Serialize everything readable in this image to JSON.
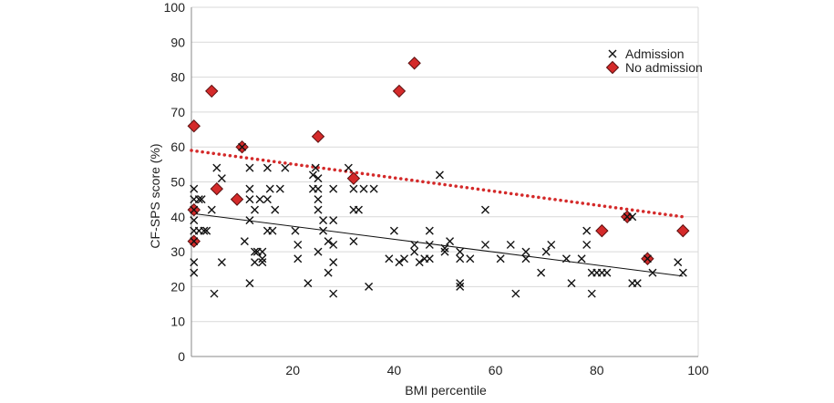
{
  "chart_data": {
    "type": "scatter",
    "xlabel": "BMI percentile",
    "ylabel": "CF-SPS score (%)",
    "xlim": [
      0,
      100
    ],
    "ylim": [
      0,
      100
    ],
    "x_ticks": [
      20,
      40,
      60,
      80,
      100
    ],
    "y_ticks": [
      0,
      10,
      20,
      30,
      40,
      50,
      60,
      70,
      80,
      90,
      100
    ],
    "grid": "horizontal",
    "legend_position": "top-right",
    "colors": {
      "admission": "#111111",
      "no_admission_fill": "#d42a2a",
      "no_admission_edge": "#5a1010",
      "trend_no_admission": "#d42a2a",
      "trend_admission": "#111111",
      "grid": "#d9d9d9"
    },
    "series": [
      {
        "name": "Admission",
        "marker": "x",
        "points": [
          [
            0.5,
            48
          ],
          [
            0.5,
            45
          ],
          [
            0.5,
            42
          ],
          [
            0.5,
            39
          ],
          [
            0.5,
            36
          ],
          [
            0.5,
            33
          ],
          [
            0.5,
            27
          ],
          [
            0.5,
            24
          ],
          [
            1.5,
            45
          ],
          [
            1.5,
            36
          ],
          [
            2,
            45
          ],
          [
            2.5,
            36
          ],
          [
            3,
            36
          ],
          [
            4,
            42
          ],
          [
            4.5,
            18
          ],
          [
            5,
            54
          ],
          [
            6,
            51
          ],
          [
            6,
            27
          ],
          [
            10,
            60
          ],
          [
            10.5,
            33
          ],
          [
            11.5,
            54
          ],
          [
            11.5,
            48
          ],
          [
            11.5,
            45
          ],
          [
            11.5,
            39
          ],
          [
            11.5,
            21
          ],
          [
            12.5,
            42
          ],
          [
            12.5,
            30
          ],
          [
            12.5,
            27
          ],
          [
            13,
            30
          ],
          [
            13.5,
            45
          ],
          [
            14,
            30
          ],
          [
            14,
            28
          ],
          [
            14,
            27
          ],
          [
            15,
            45
          ],
          [
            15,
            36
          ],
          [
            15,
            54
          ],
          [
            15.5,
            48
          ],
          [
            16,
            36
          ],
          [
            16.5,
            42
          ],
          [
            17.5,
            48
          ],
          [
            18.5,
            54
          ],
          [
            20.5,
            36
          ],
          [
            21,
            32
          ],
          [
            21,
            28
          ],
          [
            23,
            21
          ],
          [
            24,
            52
          ],
          [
            24,
            48
          ],
          [
            24.5,
            54
          ],
          [
            25,
            51
          ],
          [
            25,
            48
          ],
          [
            25,
            45
          ],
          [
            25,
            42
          ],
          [
            25,
            30
          ],
          [
            26,
            39
          ],
          [
            26,
            36
          ],
          [
            27,
            24
          ],
          [
            27,
            33
          ],
          [
            28,
            48
          ],
          [
            28,
            39
          ],
          [
            28,
            32
          ],
          [
            28,
            27
          ],
          [
            28,
            18
          ],
          [
            31,
            54
          ],
          [
            32,
            48
          ],
          [
            32,
            42
          ],
          [
            32,
            33
          ],
          [
            33,
            42
          ],
          [
            34,
            48
          ],
          [
            35,
            20
          ],
          [
            36,
            48
          ],
          [
            39,
            28
          ],
          [
            40,
            36
          ],
          [
            41,
            27
          ],
          [
            42,
            28
          ],
          [
            44,
            32
          ],
          [
            44,
            30
          ],
          [
            45,
            27
          ],
          [
            46,
            28
          ],
          [
            47,
            36
          ],
          [
            47,
            32
          ],
          [
            47,
            28
          ],
          [
            49,
            52
          ],
          [
            50,
            30
          ],
          [
            50,
            31
          ],
          [
            51,
            33
          ],
          [
            53,
            30
          ],
          [
            53,
            28
          ],
          [
            53,
            21
          ],
          [
            53,
            20
          ],
          [
            55,
            28
          ],
          [
            58,
            42
          ],
          [
            58,
            32
          ],
          [
            61,
            28
          ],
          [
            63,
            32
          ],
          [
            64,
            18
          ],
          [
            66,
            30
          ],
          [
            66,
            28
          ],
          [
            69,
            24
          ],
          [
            70,
            30
          ],
          [
            71,
            32
          ],
          [
            74,
            28
          ],
          [
            75,
            21
          ],
          [
            77,
            28
          ],
          [
            78,
            32
          ],
          [
            78,
            36
          ],
          [
            79,
            24
          ],
          [
            79,
            18
          ],
          [
            80,
            24
          ],
          [
            81,
            24
          ],
          [
            82,
            24
          ],
          [
            86,
            40
          ],
          [
            87,
            40
          ],
          [
            87,
            21
          ],
          [
            88,
            21
          ],
          [
            90,
            28
          ],
          [
            91,
            24
          ],
          [
            96,
            27
          ],
          [
            97,
            24
          ]
        ]
      },
      {
        "name": "No admission",
        "marker": "diamond",
        "points": [
          [
            0.5,
            66
          ],
          [
            0.5,
            42
          ],
          [
            0.5,
            33
          ],
          [
            4,
            76
          ],
          [
            5,
            48
          ],
          [
            9,
            45
          ],
          [
            10,
            60
          ],
          [
            25,
            63
          ],
          [
            32,
            51
          ],
          [
            41,
            76
          ],
          [
            44,
            84
          ],
          [
            81,
            36
          ],
          [
            86,
            40
          ],
          [
            90,
            28
          ],
          [
            97,
            36
          ]
        ]
      }
    ],
    "trendlines": [
      {
        "series": "No admission",
        "style": "dotted",
        "from": [
          0,
          59
        ],
        "to": [
          97,
          40
        ]
      },
      {
        "series": "Admission",
        "style": "solid",
        "from": [
          0,
          41
        ],
        "to": [
          97,
          23
        ]
      }
    ]
  }
}
